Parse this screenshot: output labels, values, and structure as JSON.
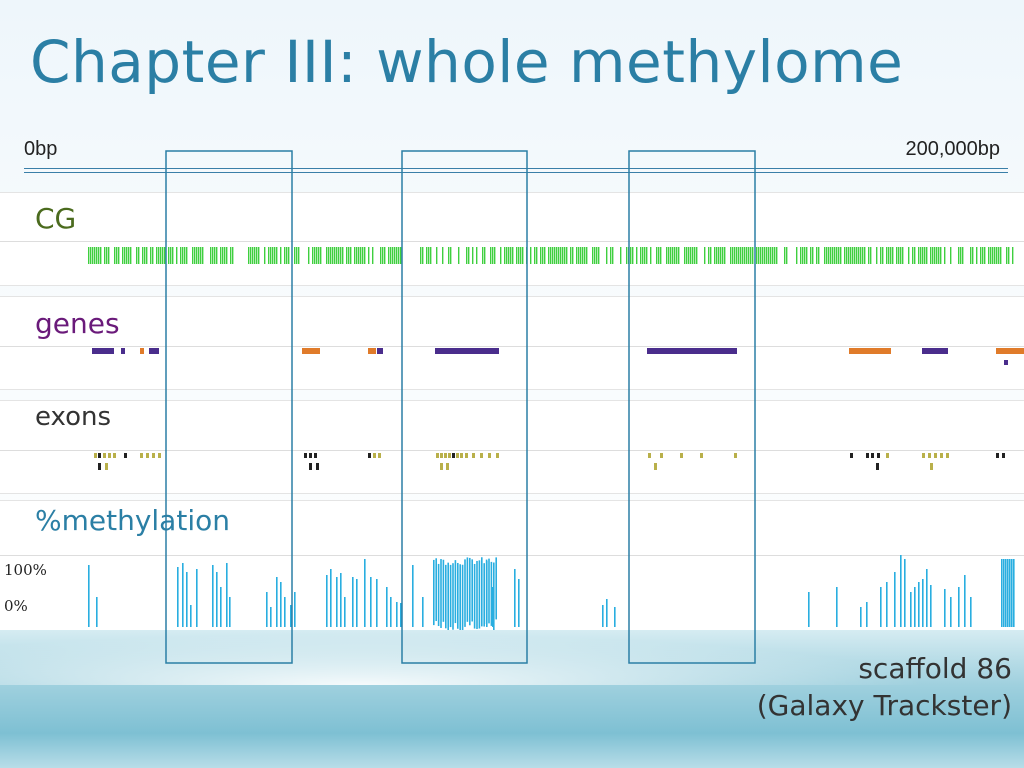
{
  "title": "Chapter III: whole methylome",
  "scale": {
    "start_label": "0bp",
    "end_label": "200,000bp"
  },
  "tracks": {
    "cg": {
      "label": "CG",
      "color": "#4b6b1e",
      "mark_color": "#3fcf3f"
    },
    "genes": {
      "label": "genes",
      "color": "#6a1a7a",
      "colors": [
        "#4a2d8c",
        "#e07b2a"
      ]
    },
    "exons": {
      "label": "exons",
      "color": "#333333",
      "colors": [
        "#222222",
        "#b9b04a"
      ]
    },
    "methylation": {
      "label": "%methylation",
      "color": "#2b7fa5",
      "y_top": "100%",
      "y_bottom": "0%",
      "bar_color": "#29aee0"
    }
  },
  "caption": {
    "line1": "scaffold 86",
    "line2": "(Galaxy Trackster)"
  },
  "highlight_color": "#2b7fa5",
  "icons": {
    "note": "none"
  }
}
